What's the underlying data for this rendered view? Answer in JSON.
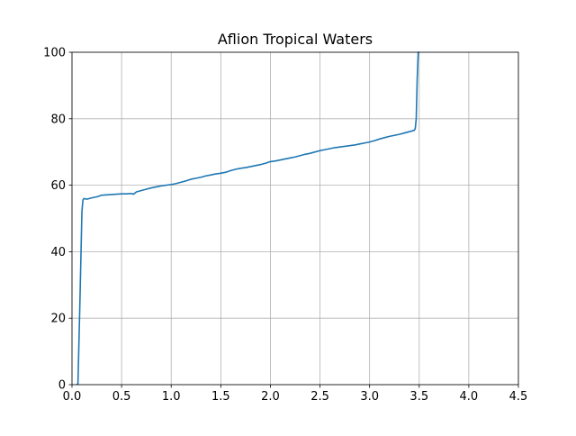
{
  "chart_data": {
    "type": "line",
    "title": "Aflion Tropical Waters",
    "xlabel": "",
    "ylabel": "",
    "xlim": [
      0,
      4.5
    ],
    "ylim": [
      0,
      100
    ],
    "xticks": [
      0.0,
      0.5,
      1.0,
      1.5,
      2.0,
      2.5,
      3.0,
      3.5,
      4.0,
      4.5
    ],
    "xtick_labels": [
      "0.0",
      "0.5",
      "1.0",
      "1.5",
      "2.0",
      "2.5",
      "3.0",
      "3.5",
      "4.0",
      "4.5"
    ],
    "yticks": [
      0,
      20,
      40,
      60,
      80,
      100
    ],
    "ytick_labels": [
      "0",
      "20",
      "40",
      "60",
      "80",
      "100"
    ],
    "grid": true,
    "series": [
      {
        "color": "#1f77b4",
        "x": [
          0.05,
          0.06,
          0.08,
          0.1,
          0.11,
          0.12,
          0.15,
          0.2,
          0.25,
          0.3,
          0.35,
          0.4,
          0.45,
          0.5,
          0.55,
          0.6,
          0.62,
          0.65,
          0.7,
          0.75,
          0.8,
          0.85,
          0.9,
          0.95,
          1.0,
          1.05,
          1.1,
          1.15,
          1.2,
          1.25,
          1.3,
          1.35,
          1.4,
          1.45,
          1.5,
          1.55,
          1.6,
          1.65,
          1.7,
          1.75,
          1.8,
          1.85,
          1.9,
          1.95,
          2.0,
          2.05,
          2.1,
          2.15,
          2.2,
          2.25,
          2.3,
          2.35,
          2.4,
          2.45,
          2.5,
          2.55,
          2.6,
          2.65,
          2.7,
          2.75,
          2.8,
          2.85,
          2.9,
          2.95,
          3.0,
          3.05,
          3.1,
          3.15,
          3.2,
          3.25,
          3.3,
          3.35,
          3.4,
          3.45,
          3.46,
          3.47,
          3.48,
          3.49,
          3.5
        ],
        "y": [
          0,
          0.3,
          25,
          52,
          55.5,
          56,
          55.8,
          56.2,
          56.5,
          57.0,
          57.1,
          57.2,
          57.3,
          57.4,
          57.4,
          57.5,
          57.3,
          58.0,
          58.4,
          58.8,
          59.2,
          59.5,
          59.8,
          60.0,
          60.2,
          60.5,
          60.9,
          61.3,
          61.8,
          62.1,
          62.4,
          62.8,
          63.1,
          63.4,
          63.6,
          63.9,
          64.4,
          64.8,
          65.1,
          65.3,
          65.6,
          65.9,
          66.2,
          66.6,
          67.1,
          67.3,
          67.6,
          67.9,
          68.2,
          68.5,
          68.9,
          69.3,
          69.6,
          70.0,
          70.4,
          70.7,
          71.0,
          71.3,
          71.5,
          71.7,
          71.9,
          72.1,
          72.4,
          72.7,
          73.0,
          73.4,
          73.9,
          74.3,
          74.7,
          75.0,
          75.3,
          75.7,
          76.1,
          76.5,
          77.0,
          80.0,
          92.0,
          100.0,
          100.0
        ]
      }
    ]
  }
}
